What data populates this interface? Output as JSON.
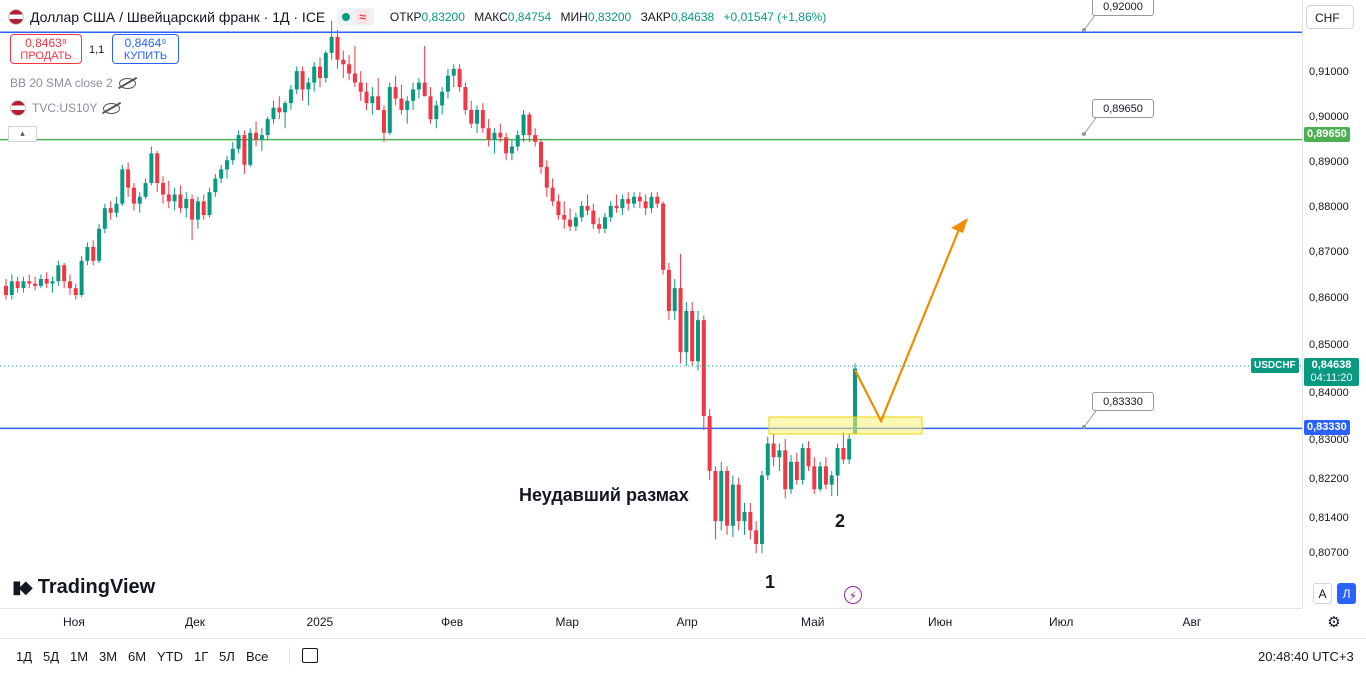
{
  "header": {
    "title": "Доллар США / Швейцарский франк · 1Д · ICE",
    "wave_icon": "≈",
    "ohlc": [
      {
        "label": "ОТКР",
        "value": "0,83200"
      },
      {
        "label": "МАКС",
        "value": "0,84754"
      },
      {
        "label": "МИН",
        "value": "0,83200"
      },
      {
        "label": "ЗАКР",
        "value": "0,84638"
      }
    ],
    "change": "+0,01547 (+1,86%)"
  },
  "trade": {
    "sell_price": "0,8463⁸",
    "sell_label": "ПРОДАТЬ",
    "spread": "1,1",
    "buy_price": "0,8464⁹",
    "buy_label": "КУПИТЬ"
  },
  "indicators": [
    {
      "label": "BB 20 SMA close 2"
    },
    {
      "label": "TVC:US10Y"
    }
  ],
  "currency": "CHF",
  "symbol_tag": "USDCHF",
  "current_price": "0,84638",
  "countdown": "04:11:20",
  "level_tags": [
    {
      "value": "0,89650",
      "color": "#4caf50"
    },
    {
      "value": "0,83330",
      "color": "#2962ff"
    }
  ],
  "level_callouts": [
    {
      "value": "0,92000"
    },
    {
      "value": "0,89650"
    },
    {
      "value": "0,83330"
    }
  ],
  "annotations": {
    "failed_swing": "Неудавший размах",
    "point1": "1",
    "point2": "2"
  },
  "logo": "TradingView",
  "axis_toggles": {
    "auto": "A",
    "log": "Л"
  },
  "timeframes": [
    "1Д",
    "5Д",
    "1М",
    "3М",
    "6М",
    "YTD",
    "1Г",
    "5Л",
    "Все"
  ],
  "clock": "20:48:40 UTC+3",
  "chart_data": {
    "type": "candlestick",
    "title": "Доллар США / Швейцарский франк · 1Д · ICE",
    "ylim": [
      0.8045,
      0.9205
    ],
    "y_ticks": [
      "0,91000",
      "0,90000",
      "0,89000",
      "0,88000",
      "0,87000",
      "0,86000",
      "0,85000",
      "0,84000",
      "0,83000",
      "0,82200",
      "0,81400",
      "0,80700"
    ],
    "x_ticks": [
      "Ноя",
      "Дек",
      "2025",
      "Фев",
      "Мар",
      "Апр",
      "Май",
      "Июн",
      "Июл",
      "Авг"
    ],
    "colors": {
      "up": "#089981",
      "down": "#f23645"
    },
    "levels": [
      {
        "value": 0.92,
        "color": "#2962ff"
      },
      {
        "value": 0.8965,
        "color": "#4caf50"
      },
      {
        "value": 0.8333,
        "color": "#2962ff"
      }
    ],
    "candles": [
      [
        0.8645,
        0.866,
        0.8615,
        0.8625
      ],
      [
        0.8625,
        0.867,
        0.8615,
        0.8655
      ],
      [
        0.8655,
        0.8665,
        0.863,
        0.864
      ],
      [
        0.864,
        0.8665,
        0.863,
        0.8655
      ],
      [
        0.8655,
        0.867,
        0.864,
        0.865
      ],
      [
        0.865,
        0.8665,
        0.8635,
        0.8645
      ],
      [
        0.8645,
        0.867,
        0.864,
        0.866
      ],
      [
        0.866,
        0.8675,
        0.864,
        0.865
      ],
      [
        0.865,
        0.8665,
        0.863,
        0.8655
      ],
      [
        0.8655,
        0.87,
        0.8645,
        0.869
      ],
      [
        0.869,
        0.8695,
        0.864,
        0.8655
      ],
      [
        0.8655,
        0.867,
        0.8625,
        0.864
      ],
      [
        0.864,
        0.865,
        0.8615,
        0.8625
      ],
      [
        0.8625,
        0.871,
        0.862,
        0.87
      ],
      [
        0.87,
        0.874,
        0.869,
        0.873
      ],
      [
        0.873,
        0.8745,
        0.869,
        0.87
      ],
      [
        0.87,
        0.878,
        0.8695,
        0.877
      ],
      [
        0.877,
        0.8825,
        0.876,
        0.8815
      ],
      [
        0.8815,
        0.883,
        0.879,
        0.8805
      ],
      [
        0.8805,
        0.884,
        0.8795,
        0.8825
      ],
      [
        0.8825,
        0.891,
        0.882,
        0.89
      ],
      [
        0.89,
        0.8915,
        0.884,
        0.886
      ],
      [
        0.886,
        0.887,
        0.881,
        0.8825
      ],
      [
        0.8825,
        0.885,
        0.8805,
        0.884
      ],
      [
        0.884,
        0.888,
        0.8835,
        0.887
      ],
      [
        0.887,
        0.895,
        0.8865,
        0.8935
      ],
      [
        0.8935,
        0.894,
        0.885,
        0.887
      ],
      [
        0.887,
        0.8885,
        0.8825,
        0.8845
      ],
      [
        0.8845,
        0.8875,
        0.8815,
        0.883
      ],
      [
        0.883,
        0.886,
        0.881,
        0.8845
      ],
      [
        0.8845,
        0.8865,
        0.8805,
        0.8815
      ],
      [
        0.8815,
        0.885,
        0.8795,
        0.8835
      ],
      [
        0.8835,
        0.8845,
        0.8745,
        0.879
      ],
      [
        0.879,
        0.884,
        0.877,
        0.883
      ],
      [
        0.883,
        0.8845,
        0.879,
        0.88
      ],
      [
        0.88,
        0.886,
        0.8795,
        0.885
      ],
      [
        0.885,
        0.889,
        0.884,
        0.888
      ],
      [
        0.888,
        0.891,
        0.887,
        0.89
      ],
      [
        0.89,
        0.893,
        0.888,
        0.892
      ],
      [
        0.892,
        0.896,
        0.891,
        0.8945
      ],
      [
        0.8945,
        0.8985,
        0.8935,
        0.8975
      ],
      [
        0.8975,
        0.8985,
        0.889,
        0.891
      ],
      [
        0.891,
        0.899,
        0.8905,
        0.898
      ],
      [
        0.898,
        0.9005,
        0.895,
        0.8965
      ],
      [
        0.8965,
        0.899,
        0.894,
        0.8975
      ],
      [
        0.8975,
        0.9015,
        0.8965,
        0.901
      ],
      [
        0.901,
        0.905,
        0.9,
        0.9035
      ],
      [
        0.9035,
        0.906,
        0.901,
        0.9025
      ],
      [
        0.9025,
        0.905,
        0.899,
        0.9045
      ],
      [
        0.9045,
        0.9085,
        0.903,
        0.9075
      ],
      [
        0.9075,
        0.9125,
        0.9065,
        0.9115
      ],
      [
        0.9115,
        0.9125,
        0.905,
        0.9075
      ],
      [
        0.9075,
        0.91,
        0.904,
        0.909
      ],
      [
        0.909,
        0.9135,
        0.907,
        0.9125
      ],
      [
        0.9125,
        0.9145,
        0.908,
        0.91
      ],
      [
        0.91,
        0.916,
        0.909,
        0.9155
      ],
      [
        0.9155,
        0.9225,
        0.914,
        0.919
      ],
      [
        0.919,
        0.9205,
        0.912,
        0.914
      ],
      [
        0.914,
        0.916,
        0.91,
        0.913
      ],
      [
        0.913,
        0.915,
        0.9095,
        0.911
      ],
      [
        0.911,
        0.917,
        0.908,
        0.909
      ],
      [
        0.909,
        0.9115,
        0.905,
        0.907
      ],
      [
        0.907,
        0.909,
        0.903,
        0.9045
      ],
      [
        0.9045,
        0.908,
        0.902,
        0.906
      ],
      [
        0.906,
        0.91,
        0.904,
        0.903
      ],
      [
        0.903,
        0.904,
        0.896,
        0.898
      ],
      [
        0.898,
        0.909,
        0.8975,
        0.908
      ],
      [
        0.908,
        0.9105,
        0.904,
        0.9055
      ],
      [
        0.9055,
        0.9085,
        0.902,
        0.903
      ],
      [
        0.903,
        0.906,
        0.9,
        0.905
      ],
      [
        0.905,
        0.909,
        0.903,
        0.9075
      ],
      [
        0.9075,
        0.91,
        0.9055,
        0.909
      ],
      [
        0.909,
        0.917,
        0.906,
        0.906
      ],
      [
        0.906,
        0.908,
        0.9,
        0.901
      ],
      [
        0.901,
        0.905,
        0.899,
        0.904
      ],
      [
        0.904,
        0.908,
        0.902,
        0.907
      ],
      [
        0.907,
        0.912,
        0.9055,
        0.9105
      ],
      [
        0.9105,
        0.913,
        0.908,
        0.912
      ],
      [
        0.912,
        0.913,
        0.907,
        0.908
      ],
      [
        0.908,
        0.909,
        0.902,
        0.903
      ],
      [
        0.903,
        0.905,
        0.899,
        0.9
      ],
      [
        0.9,
        0.904,
        0.898,
        0.903
      ],
      [
        0.903,
        0.9045,
        0.898,
        0.899
      ],
      [
        0.899,
        0.901,
        0.895,
        0.8965
      ],
      [
        0.8965,
        0.899,
        0.8935,
        0.898
      ],
      [
        0.898,
        0.9,
        0.896,
        0.897
      ],
      [
        0.897,
        0.898,
        0.892,
        0.8935
      ],
      [
        0.8935,
        0.8965,
        0.892,
        0.895
      ],
      [
        0.895,
        0.8985,
        0.894,
        0.8975
      ],
      [
        0.8975,
        0.903,
        0.896,
        0.902
      ],
      [
        0.902,
        0.9025,
        0.896,
        0.8975
      ],
      [
        0.8975,
        0.899,
        0.895,
        0.896
      ],
      [
        0.896,
        0.8965,
        0.889,
        0.8905
      ],
      [
        0.8905,
        0.892,
        0.884,
        0.886
      ],
      [
        0.886,
        0.888,
        0.882,
        0.883
      ],
      [
        0.883,
        0.8845,
        0.879,
        0.88
      ],
      [
        0.88,
        0.883,
        0.877,
        0.879
      ],
      [
        0.879,
        0.8815,
        0.8765,
        0.8775
      ],
      [
        0.8775,
        0.8805,
        0.8765,
        0.8795
      ],
      [
        0.8795,
        0.883,
        0.8785,
        0.882
      ],
      [
        0.882,
        0.8845,
        0.88,
        0.881
      ],
      [
        0.881,
        0.8825,
        0.877,
        0.878
      ],
      [
        0.878,
        0.8795,
        0.876,
        0.877
      ],
      [
        0.877,
        0.8805,
        0.876,
        0.8795
      ],
      [
        0.8795,
        0.883,
        0.8785,
        0.882
      ],
      [
        0.882,
        0.8845,
        0.8805,
        0.8815
      ],
      [
        0.8815,
        0.8845,
        0.88,
        0.8835
      ],
      [
        0.8835,
        0.885,
        0.881,
        0.8825
      ],
      [
        0.8825,
        0.885,
        0.8815,
        0.884
      ],
      [
        0.884,
        0.885,
        0.8815,
        0.883
      ],
      [
        0.883,
        0.8845,
        0.88,
        0.8815
      ],
      [
        0.8815,
        0.885,
        0.8805,
        0.884
      ],
      [
        0.884,
        0.885,
        0.8815,
        0.8825
      ],
      [
        0.8825,
        0.883,
        0.867,
        0.868
      ],
      [
        0.868,
        0.8695,
        0.857,
        0.859
      ],
      [
        0.859,
        0.866,
        0.857,
        0.864
      ],
      [
        0.864,
        0.8715,
        0.8475,
        0.85
      ],
      [
        0.85,
        0.861,
        0.847,
        0.859
      ],
      [
        0.859,
        0.861,
        0.847,
        0.848
      ],
      [
        0.848,
        0.859,
        0.846,
        0.857
      ],
      [
        0.857,
        0.858,
        0.833,
        0.836
      ],
      [
        0.836,
        0.8375,
        0.822,
        0.824
      ],
      [
        0.824,
        0.825,
        0.809,
        0.813
      ],
      [
        0.813,
        0.826,
        0.811,
        0.824
      ],
      [
        0.824,
        0.825,
        0.81,
        0.812
      ],
      [
        0.812,
        0.823,
        0.8095,
        0.821
      ],
      [
        0.821,
        0.8225,
        0.811,
        0.813
      ],
      [
        0.813,
        0.817,
        0.81,
        0.815
      ],
      [
        0.815,
        0.817,
        0.809,
        0.811
      ],
      [
        0.811,
        0.813,
        0.806,
        0.808
      ],
      [
        0.808,
        0.824,
        0.806,
        0.823
      ],
      [
        0.823,
        0.8315,
        0.822,
        0.83
      ],
      [
        0.83,
        0.832,
        0.825,
        0.827
      ],
      [
        0.827,
        0.83,
        0.824,
        0.8285
      ],
      [
        0.8285,
        0.831,
        0.818,
        0.82
      ],
      [
        0.82,
        0.8275,
        0.819,
        0.826
      ],
      [
        0.826,
        0.828,
        0.821,
        0.822
      ],
      [
        0.822,
        0.83,
        0.821,
        0.829
      ],
      [
        0.829,
        0.8305,
        0.824,
        0.825
      ],
      [
        0.825,
        0.827,
        0.819,
        0.82
      ],
      [
        0.82,
        0.826,
        0.8195,
        0.825
      ],
      [
        0.825,
        0.827,
        0.82,
        0.821
      ],
      [
        0.821,
        0.824,
        0.8185,
        0.823
      ],
      [
        0.823,
        0.83,
        0.8185,
        0.829
      ],
      [
        0.829,
        0.8325,
        0.8255,
        0.8265
      ],
      [
        0.8265,
        0.832,
        0.8255,
        0.831
      ],
      [
        0.832,
        0.8475,
        0.832,
        0.8464
      ]
    ]
  }
}
